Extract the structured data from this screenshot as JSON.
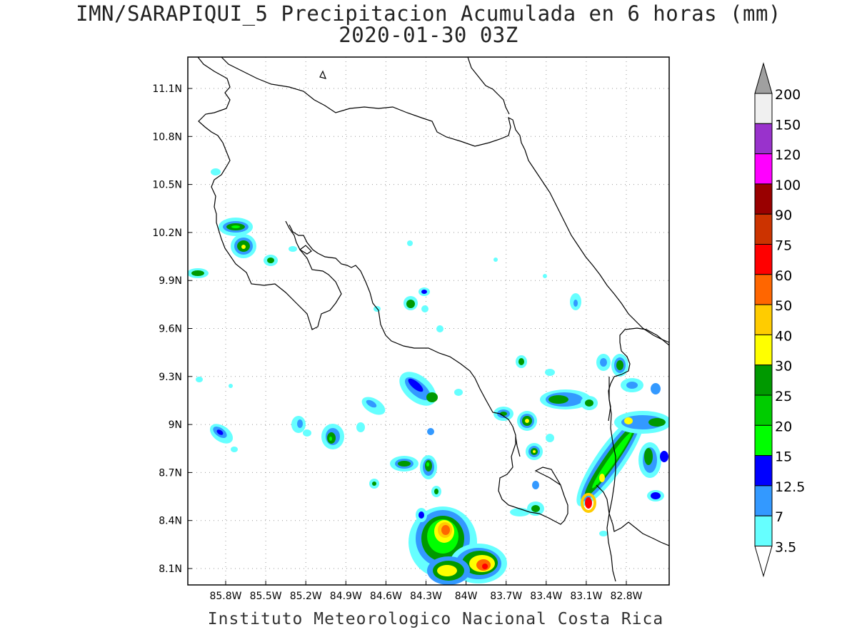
{
  "map": {
    "title_line1": "IMN/SARAPIQUI_5 Precipitacion Acumulada en 6 horas (mm)",
    "title_line2": "2020-01-30 03Z",
    "footer": "Instituto Meteorologico Nacional Costa Rica",
    "lat_labels": [
      "11.1N",
      "10.8N",
      "10.5N",
      "10.2N",
      "9.9N",
      "9.6N",
      "9.3N",
      "9N",
      "8.7N",
      "8.4N",
      "8.1N"
    ],
    "lon_labels": [
      "85.8W",
      "85.5W",
      "85.2W",
      "84.9W",
      "84.6W",
      "84.3W",
      "84W",
      "83.7W",
      "83.4W",
      "83.1W",
      "82.8W"
    ],
    "lat_values": [
      11.1,
      10.8,
      10.5,
      10.2,
      9.9,
      9.6,
      9.3,
      9.0,
      8.7,
      8.4,
      8.1
    ],
    "lon_values": [
      -85.8,
      -85.5,
      -85.2,
      -84.9,
      -84.6,
      -84.3,
      -84.0,
      -83.7,
      -83.4,
      -83.1,
      -82.8
    ],
    "grid": true,
    "unit": "mm"
  },
  "legend": {
    "labels": [
      "200",
      "150",
      "120",
      "100",
      "90",
      "75",
      "60",
      "50",
      "40",
      "30",
      "25",
      "20",
      "15",
      "12.5",
      "7",
      "3.5"
    ],
    "colors_top_to_bottom": [
      "#f0f0f0",
      "#9932cc",
      "#ff00ff",
      "#990000",
      "#cc3300",
      "#ff0000",
      "#ff6600",
      "#ffcc00",
      "#ffff00",
      "#009900",
      "#00cc00",
      "#00ff00",
      "#0000ff",
      "#3399ff",
      "#66ffff"
    ],
    "cap_top_color": "#a0a0a0",
    "cap_bottom_color": "#ffffff"
  }
}
